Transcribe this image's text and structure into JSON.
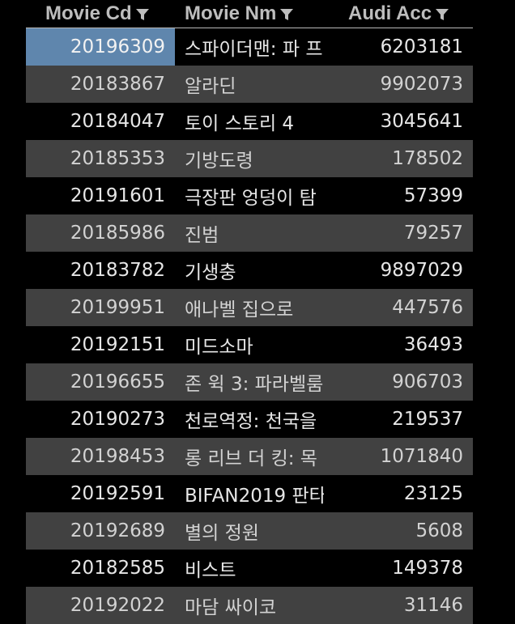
{
  "columns": [
    {
      "label": "Movie Cd",
      "icon": "filter-icon"
    },
    {
      "label": "Movie Nm",
      "icon": "filter-icon"
    },
    {
      "label": "Audi Acc",
      "icon": "filter-icon"
    }
  ],
  "colors": {
    "background": "#000000",
    "alt_row": "#414141",
    "selected_cell": "#5f86ad",
    "header_text": "#bdbdbd",
    "cell_text": "#e6e6e6"
  },
  "selected_row": 0,
  "rows": [
    {
      "code": "20196309",
      "name": "스파이더맨: 파 프",
      "acc": "6203181"
    },
    {
      "code": "20183867",
      "name": "알라딘",
      "acc": "9902073"
    },
    {
      "code": "20184047",
      "name": "토이 스토리 4",
      "acc": "3045641"
    },
    {
      "code": "20185353",
      "name": "기방도령",
      "acc": "178502"
    },
    {
      "code": "20191601",
      "name": "극장판 엉덩이 탐",
      "acc": "57399"
    },
    {
      "code": "20185986",
      "name": "진범",
      "acc": "79257"
    },
    {
      "code": "20183782",
      "name": "기생충",
      "acc": "9897029"
    },
    {
      "code": "20199951",
      "name": "애나벨 집으로",
      "acc": "447576"
    },
    {
      "code": "20192151",
      "name": "미드소마",
      "acc": "36493"
    },
    {
      "code": "20196655",
      "name": "존 윅 3: 파라벨룸",
      "acc": "906703"
    },
    {
      "code": "20190273",
      "name": "천로역정: 천국을",
      "acc": "219537"
    },
    {
      "code": "20198453",
      "name": "롱 리브 더 킹: 목",
      "acc": "1071840"
    },
    {
      "code": "20192591",
      "name": "BIFAN2019 판타",
      "acc": "23125"
    },
    {
      "code": "20192689",
      "name": "별의 정원",
      "acc": "5608"
    },
    {
      "code": "20182585",
      "name": "비스트",
      "acc": "149378"
    },
    {
      "code": "20192022",
      "name": "마담 싸이코",
      "acc": "31146"
    }
  ]
}
